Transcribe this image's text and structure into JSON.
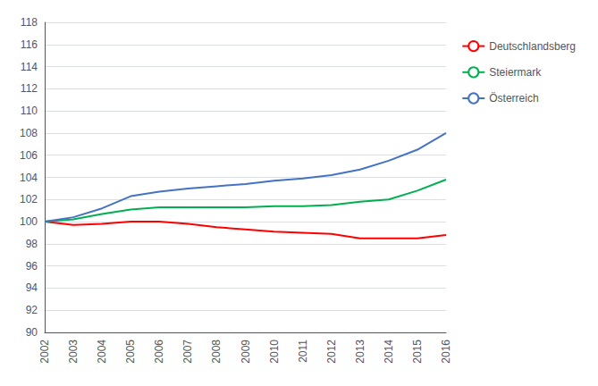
{
  "chart_data": {
    "type": "line",
    "x": [
      2002,
      2003,
      2004,
      2005,
      2006,
      2007,
      2008,
      2009,
      2010,
      2011,
      2012,
      2013,
      2014,
      2015,
      2016
    ],
    "xlim": [
      2002,
      2016
    ],
    "xticks": [
      2002,
      2003,
      2004,
      2005,
      2006,
      2007,
      2008,
      2009,
      2010,
      2011,
      2012,
      2013,
      2014,
      2015,
      2016
    ],
    "ylim": [
      90,
      118
    ],
    "yticks": [
      90,
      92,
      94,
      96,
      98,
      100,
      102,
      104,
      106,
      108,
      110,
      112,
      114,
      116,
      118
    ],
    "grid": true,
    "legend": "right",
    "series": [
      {
        "name": "Deutschlandsberg",
        "color": "#ff0000",
        "values": [
          100.0,
          99.7,
          99.8,
          100.0,
          100.0,
          99.8,
          99.5,
          99.3,
          99.1,
          99.0,
          98.9,
          98.5,
          98.5,
          98.5,
          98.8
        ]
      },
      {
        "name": "Steiermark",
        "color": "#00b050",
        "values": [
          100.0,
          100.2,
          100.7,
          101.1,
          101.3,
          101.3,
          101.3,
          101.3,
          101.4,
          101.4,
          101.5,
          101.8,
          102.0,
          102.8,
          103.8
        ]
      },
      {
        "name": "Österreich",
        "color": "#4472c4",
        "values": [
          100.0,
          100.4,
          101.2,
          102.3,
          102.7,
          103.0,
          103.2,
          103.4,
          103.7,
          103.9,
          104.2,
          104.7,
          105.5,
          106.5,
          108.0
        ]
      }
    ]
  }
}
